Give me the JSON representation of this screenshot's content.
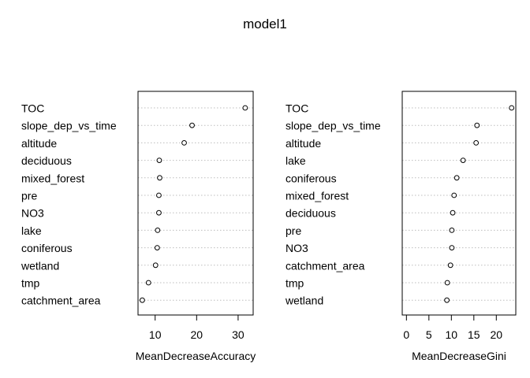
{
  "title": "model1",
  "chart_data": [
    {
      "type": "scatter",
      "style": "dotchart",
      "xlabel": "MeanDecreaseAccuracy",
      "xlim": [
        6.9,
        32.6
      ],
      "xticks": [
        10,
        20,
        30
      ],
      "xtick_labels": [
        "10",
        "20",
        "30"
      ],
      "grid": "dotted horizontal lines per category",
      "categories": [
        "TOC",
        "slope_dep_vs_time",
        "altitude",
        "deciduous",
        "mixed_forest",
        "pre",
        "NO3",
        "lake",
        "coniferous",
        "wetland",
        "tmp",
        "catchment_area"
      ],
      "values": [
        31.7,
        18.9,
        17.0,
        11.0,
        11.1,
        10.9,
        10.9,
        10.6,
        10.5,
        10.1,
        8.4,
        6.9
      ]
    },
    {
      "type": "scatter",
      "style": "dotchart",
      "xlabel": "MeanDecreaseGini",
      "xlim": [
        0,
        23.4
      ],
      "xticks": [
        0,
        5,
        10,
        15,
        20
      ],
      "xtick_labels": [
        "0",
        "5",
        "10",
        "15",
        "20"
      ],
      "grid": "dotted horizontal lines per category",
      "categories": [
        "TOC",
        "slope_dep_vs_time",
        "altitude",
        "lake",
        "coniferous",
        "mixed_forest",
        "deciduous",
        "pre",
        "NO3",
        "catchment_area",
        "tmp",
        "wetland"
      ],
      "values": [
        23.4,
        15.7,
        15.5,
        12.6,
        11.2,
        10.6,
        10.3,
        10.1,
        10.1,
        9.8,
        9.1,
        9.0
      ]
    }
  ]
}
